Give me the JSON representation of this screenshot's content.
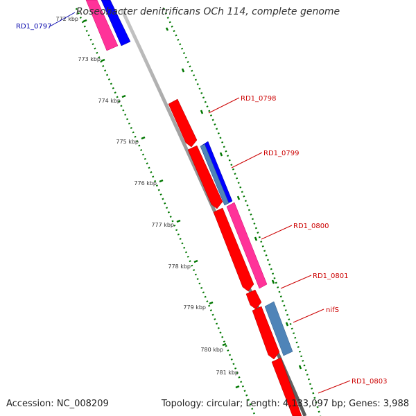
{
  "title": "Roseobacter denitrificans OCh 114, complete genome",
  "footer": {
    "accession": "Accession: NC_008209",
    "stats": "Topology: circular; Length: 4,133,097 bp; Genes: 3,988"
  },
  "ticks": [
    "772 kbp",
    "773 kbp",
    "774 kbp",
    "775 kbp",
    "776 kbp",
    "777 kbp",
    "778 kbp",
    "779 kbp",
    "780 kbp",
    "781 kbp"
  ],
  "genes": [
    {
      "label": "RD1_0797",
      "color": "#0000aa"
    },
    {
      "label": "RD1_0798",
      "color": "#cc0000"
    },
    {
      "label": "RD1_0799",
      "color": "#cc0000"
    },
    {
      "label": "RD1_0800",
      "color": "#cc0000"
    },
    {
      "label": "RD1_0801",
      "color": "#cc0000"
    },
    {
      "label": "nifS",
      "color": "#cc0000"
    },
    {
      "label": "RD1_0803",
      "color": "#cc0000"
    }
  ],
  "colors": {
    "red": "#ff0000",
    "pink": "#ff3399",
    "blue": "#0000ff",
    "steel_blue": "#4f84b8",
    "backbone": "#808080",
    "tick_green": "#007700"
  }
}
